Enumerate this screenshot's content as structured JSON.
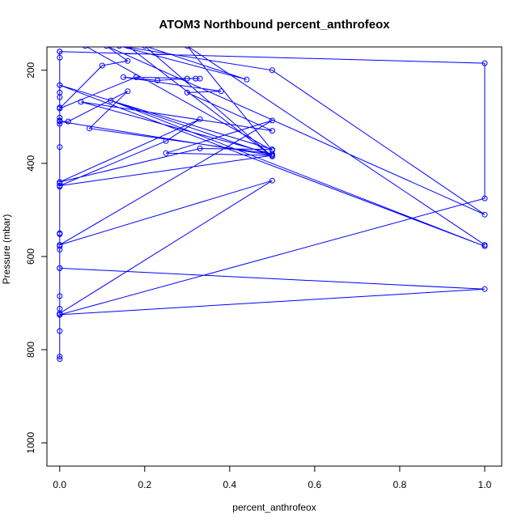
{
  "chart_data": {
    "type": "line",
    "title": "ATOM3 Northbound percent_anthrofeox",
    "xlabel": "percent_anthrofeox",
    "ylabel": "Pressure (mbar)",
    "xlim": [
      -0.03,
      1.04
    ],
    "ylim": [
      1050,
      150
    ],
    "y_reversed": true,
    "x_ticks": [
      "0.0",
      "0.2",
      "0.4",
      "0.6",
      "0.8",
      "1.0"
    ],
    "y_ticks": [
      "200",
      "400",
      "600",
      "800",
      "1000"
    ],
    "grid": false,
    "legend": "none",
    "series_color": "#0000ff",
    "marker": "open-circle",
    "series": [
      {
        "points": [
          [
            0.0,
            820
          ],
          [
            0.0,
            815
          ],
          [
            0.0,
            760
          ],
          [
            0.0,
            725
          ],
          [
            0.0,
            725
          ],
          [
            0.0,
            712
          ],
          [
            0.0,
            685
          ],
          [
            0.0,
            625
          ],
          [
            0.0,
            585
          ],
          [
            0.0,
            578
          ],
          [
            0.0,
            552
          ],
          [
            0.0,
            550
          ],
          [
            0.0,
            450
          ],
          [
            0.0,
            443
          ],
          [
            0.0,
            365
          ],
          [
            0.0,
            315
          ],
          [
            0.0,
            308
          ],
          [
            0.0,
            302
          ],
          [
            0.0,
            280
          ],
          [
            0.0,
            258
          ],
          [
            0.0,
            248
          ],
          [
            0.0,
            232
          ],
          [
            0.0,
            173
          ],
          [
            0.0,
            160
          ],
          [
            0.0,
            725
          ],
          [
            1.0,
            670
          ],
          [
            0.0,
            625
          ],
          [
            0.0,
            725
          ],
          [
            1.0,
            475
          ],
          [
            1.0,
            185
          ],
          [
            0.0,
            160
          ],
          [
            0.0,
            722
          ],
          [
            0.5,
            437
          ],
          [
            0.0,
            575
          ],
          [
            0.5,
            308
          ],
          [
            0.25,
            378
          ],
          [
            0.5,
            383
          ],
          [
            0.0,
            448
          ],
          [
            0.25,
            352
          ],
          [
            0.33,
            305
          ],
          [
            0.0,
            440
          ],
          [
            0.33,
            368
          ],
          [
            0.5,
            370
          ],
          [
            0.0,
            232
          ],
          [
            1.0,
            578
          ],
          [
            0.12,
            265
          ],
          [
            0.5,
            383
          ],
          [
            0.0,
            310
          ],
          [
            0.02,
            310
          ],
          [
            0.16,
            245
          ],
          [
            0.07,
            325
          ],
          [
            0.5,
            380
          ],
          [
            0.05,
            268
          ],
          [
            0.5,
            330
          ],
          [
            0.3,
            248
          ],
          [
            0.38,
            245
          ],
          [
            0.15,
            215
          ],
          [
            0.23,
            222
          ],
          [
            0.3,
            218
          ],
          [
            0.33,
            218
          ],
          [
            0.18,
            215
          ],
          [
            0.32,
            218
          ],
          [
            0.18,
            215
          ],
          [
            0.0,
            282
          ],
          [
            0.1,
            190
          ],
          [
            0.16,
            180
          ],
          [
            0.11,
            148
          ],
          [
            1.0,
            510
          ],
          [
            0.5,
            200
          ],
          [
            0.14,
            148
          ],
          [
            0.44,
            220
          ],
          [
            0.2,
            148
          ],
          [
            0.5,
            385
          ],
          [
            0.16,
            148
          ],
          [
            0.06,
            148
          ],
          [
            0.5,
            372
          ],
          [
            0.3,
            148
          ],
          [
            1.0,
            575
          ]
        ]
      }
    ]
  }
}
